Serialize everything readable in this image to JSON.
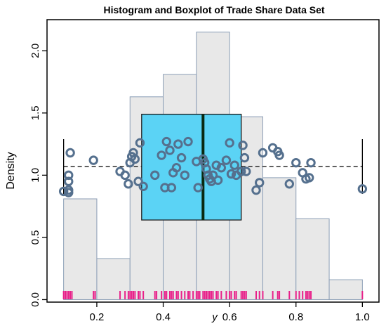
{
  "chart_data": {
    "type": "histogram",
    "title": "Histogram and Boxplot of Trade Share Data Set",
    "xlabel": "y",
    "ylabel": "Density",
    "xlim": [
      0.05,
      1.05
    ],
    "ylim": [
      -0.02,
      2.25
    ],
    "x_ticks": [
      0.2,
      0.4,
      0.6,
      0.8,
      1.0
    ],
    "x_tick_labels": [
      "0.2",
      "0.4",
      "0.6",
      "0.8",
      "1.0"
    ],
    "y_ticks": [
      0.0,
      0.5,
      1.0,
      1.5,
      2.0
    ],
    "y_tick_labels": [
      "0.0",
      "0.5",
      "1.0",
      "1.5",
      "2.0"
    ],
    "histogram": {
      "bin_edges": [
        0.1,
        0.2,
        0.3,
        0.4,
        0.5,
        0.6,
        0.7,
        0.8,
        0.9,
        1.0
      ],
      "density": [
        0.81,
        0.33,
        1.63,
        1.81,
        2.15,
        1.47,
        0.98,
        0.65,
        0.16
      ],
      "fill": "#e8e8e8",
      "edge": "#8a9db5"
    },
    "boxplot": {
      "whisker_low": 0.1,
      "q1": 0.335,
      "median": 0.52,
      "q3": 0.635,
      "whisker_high": 1.0,
      "whisker_y": 1.07,
      "box_y_range": [
        0.64,
        1.49
      ],
      "box_fill": "#5bd3f5",
      "median_color": "#0a2a12"
    },
    "points": {
      "color": "#55708e",
      "values": [
        [
          0.1,
          0.87
        ],
        [
          0.115,
          0.86
        ],
        [
          0.115,
          0.88
        ],
        [
          0.115,
          0.95
        ],
        [
          0.115,
          1.0
        ],
        [
          0.12,
          1.18
        ],
        [
          0.19,
          1.12
        ],
        [
          0.27,
          1.03
        ],
        [
          0.285,
          1.0
        ],
        [
          0.295,
          0.93
        ],
        [
          0.3,
          1.1
        ],
        [
          0.305,
          1.15
        ],
        [
          0.31,
          1.18
        ],
        [
          0.315,
          1.13
        ],
        [
          0.325,
          0.95
        ],
        [
          0.33,
          1.26
        ],
        [
          0.34,
          0.91
        ],
        [
          0.375,
          1.0
        ],
        [
          0.395,
          1.16
        ],
        [
          0.41,
          1.27
        ],
        [
          0.405,
          0.9
        ],
        [
          0.425,
          0.9
        ],
        [
          0.42,
          1.2
        ],
        [
          0.43,
          1.02
        ],
        [
          0.44,
          1.06
        ],
        [
          0.445,
          1.25
        ],
        [
          0.455,
          1.14
        ],
        [
          0.465,
          1.0
        ],
        [
          0.475,
          1.27
        ],
        [
          0.5,
          1.11
        ],
        [
          0.505,
          0.9
        ],
        [
          0.52,
          1.13
        ],
        [
          0.525,
          1.1
        ],
        [
          0.53,
          1.05
        ],
        [
          0.535,
          1.0
        ],
        [
          0.54,
          0.97
        ],
        [
          0.545,
          0.95
        ],
        [
          0.55,
          1.0
        ],
        [
          0.56,
          1.08
        ],
        [
          0.565,
          0.96
        ],
        [
          0.575,
          1.06
        ],
        [
          0.59,
          1.12
        ],
        [
          0.6,
          1.26
        ],
        [
          0.605,
          1.01
        ],
        [
          0.615,
          1.08
        ],
        [
          0.62,
          1.0
        ],
        [
          0.635,
          1.03
        ],
        [
          0.64,
          1.24
        ],
        [
          0.645,
          1.14
        ],
        [
          0.65,
          1.03
        ],
        [
          0.68,
          0.88
        ],
        [
          0.69,
          0.94
        ],
        [
          0.7,
          1.18
        ],
        [
          0.73,
          1.22
        ],
        [
          0.745,
          1.19
        ],
        [
          0.75,
          1.16
        ],
        [
          0.78,
          0.93
        ],
        [
          0.8,
          1.1
        ],
        [
          0.82,
          1.02
        ],
        [
          0.83,
          0.97
        ],
        [
          0.84,
          0.98
        ],
        [
          0.845,
          1.1
        ],
        [
          1.0,
          0.89
        ]
      ]
    },
    "rug": {
      "color": "#e8218a",
      "values": [
        0.1,
        0.105,
        0.11,
        0.115,
        0.12,
        0.125,
        0.19,
        0.195,
        0.27,
        0.285,
        0.295,
        0.3,
        0.305,
        0.31,
        0.315,
        0.325,
        0.33,
        0.34,
        0.375,
        0.38,
        0.395,
        0.405,
        0.41,
        0.42,
        0.425,
        0.43,
        0.44,
        0.445,
        0.455,
        0.465,
        0.475,
        0.48,
        0.49,
        0.5,
        0.505,
        0.51,
        0.52,
        0.525,
        0.53,
        0.535,
        0.54,
        0.545,
        0.55,
        0.56,
        0.565,
        0.575,
        0.59,
        0.6,
        0.605,
        0.615,
        0.62,
        0.635,
        0.64,
        0.645,
        0.65,
        0.68,
        0.69,
        0.7,
        0.73,
        0.745,
        0.75,
        0.78,
        0.8,
        0.81,
        0.82,
        0.83,
        0.835,
        0.84,
        0.845,
        1.0
      ]
    }
  }
}
